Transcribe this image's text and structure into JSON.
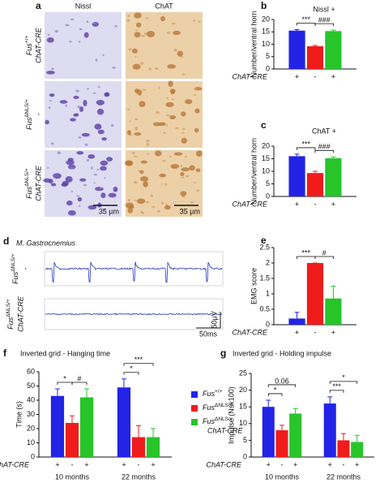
{
  "panel_a": {
    "letter": "a",
    "columns": [
      "Nissl",
      "ChAT"
    ],
    "rows": [
      {
        "gene": "Fus",
        "allele": "+/+",
        "cre": "ChAT-CRE"
      },
      {
        "gene": "Fus",
        "allele": "ΔNLS/+",
        "cre": "-"
      },
      {
        "gene": "Fus",
        "allele": "ΔNLS/+",
        "cre": "ChAT-CRE"
      }
    ],
    "scale_bars": [
      "35 µm",
      "35 µm"
    ]
  },
  "panel_d": {
    "letter": "d",
    "muscle": "M. Gastrocnemius",
    "rows": [
      {
        "gene": "Fus",
        "allele": "ΔNLS/+",
        "cre": "-"
      },
      {
        "gene": "Fus",
        "allele": "ΔNLS/+",
        "cre": "ChAT-CRE"
      }
    ],
    "scale_y": "50µV",
    "scale_x": "50ms"
  },
  "chart_data": [
    {
      "type": "bar",
      "letter": "b",
      "title": "Nissl +",
      "y_label": "Number/ventral horn",
      "x_label": "ChAT-CRE",
      "bar_labels": [
        "+",
        "-",
        "+"
      ],
      "series": [
        {
          "color": "#2323e6",
          "values": [
            15.5
          ],
          "errors": [
            0.4
          ]
        },
        {
          "color": "#f01c1c",
          "values": [
            9.2
          ],
          "errors": [
            0.3
          ]
        },
        {
          "color": "#27c42a",
          "values": [
            15.3
          ],
          "errors": [
            0.4
          ]
        }
      ],
      "ylim": [
        0,
        20
      ],
      "yticks": [
        0,
        5,
        10,
        15,
        20
      ],
      "annotations": [
        {
          "text": "***",
          "bars": [
            0,
            1
          ]
        },
        {
          "text": "###",
          "bars": [
            1,
            2
          ]
        }
      ]
    },
    {
      "type": "bar",
      "letter": "c",
      "title": "ChAT +",
      "y_label": "Number/ventral horn",
      "x_label": "ChAT-CRE",
      "bar_labels": [
        "+",
        "-",
        "+"
      ],
      "series": [
        {
          "color": "#2323e6",
          "values": [
            16
          ],
          "errors": [
            0.8
          ]
        },
        {
          "color": "#f01c1c",
          "values": [
            9.3
          ],
          "errors": [
            0.7
          ]
        },
        {
          "color": "#27c42a",
          "values": [
            15.2
          ],
          "errors": [
            0.5
          ]
        }
      ],
      "ylim": [
        0,
        20
      ],
      "yticks": [
        0,
        5,
        10,
        15,
        20
      ],
      "annotations": [
        {
          "text": "***",
          "bars": [
            0,
            1
          ]
        },
        {
          "text": "###",
          "bars": [
            1,
            2
          ]
        }
      ]
    },
    {
      "type": "bar",
      "letter": "e",
      "y_label": "EMG score",
      "x_label": "ChAT-CRE",
      "bar_labels": [
        "+",
        "-",
        "+"
      ],
      "series": [
        {
          "color": "#2323e6",
          "values": [
            0.2
          ],
          "errors": [
            0.2
          ]
        },
        {
          "color": "#f01c1c",
          "values": [
            2
          ],
          "errors": [
            0
          ]
        },
        {
          "color": "#27c42a",
          "values": [
            0.85
          ],
          "errors": [
            0.4
          ]
        }
      ],
      "ylim": [
        0,
        2.5
      ],
      "yticks": [
        0,
        0.5,
        1,
        1.5,
        2,
        2.5
      ],
      "annotations": [
        {
          "text": "***",
          "bars": [
            0,
            1
          ]
        },
        {
          "text": "#",
          "bars": [
            1,
            2
          ]
        }
      ]
    },
    {
      "type": "bar",
      "letter": "f",
      "title": "Inverted grid  - Hanging time",
      "y_label": "Time (s)",
      "x_label": "ChAT-CRE",
      "groups": [
        "10 months",
        "22 months"
      ],
      "bar_labels": [
        "+",
        "-",
        "+",
        "+",
        "-",
        "+"
      ],
      "series": [
        {
          "name": "Fus",
          "name_sup": "+/+",
          "color": "#2323e6",
          "values": [
            43,
            49
          ],
          "errors": [
            5,
            6
          ]
        },
        {
          "name": "Fus",
          "name_sup": "ΔNLS/+",
          "color": "#f01c1c",
          "values": [
            24,
            14
          ],
          "errors": [
            5,
            8
          ]
        },
        {
          "name": "Fus",
          "name_sup": "ΔNLS/+",
          "name_line2": "ChAT-CRE",
          "color": "#27c42a",
          "values": [
            42,
            14
          ],
          "errors": [
            6,
            6
          ]
        }
      ],
      "ylim": [
        0,
        60
      ],
      "yticks": [
        0,
        10,
        20,
        30,
        40,
        50,
        60
      ],
      "annotations": [
        {
          "text": "*",
          "bars": [
            0,
            1
          ]
        },
        {
          "text": "#",
          "bars": [
            1,
            2
          ]
        },
        {
          "text": "*",
          "bars": [
            3,
            4
          ]
        },
        {
          "text": "***",
          "bars": [
            3,
            5
          ]
        }
      ]
    },
    {
      "type": "bar",
      "letter": "g",
      "title": "Inverted grid  - Holding impulse",
      "y_label": "Impulse (Nsx100)",
      "x_label": "ChAT-CRE",
      "groups": [
        "10 months",
        "22 months"
      ],
      "bar_labels": [
        "+",
        "-",
        "+",
        "+",
        "-",
        "+"
      ],
      "series": [
        {
          "color": "#2323e6",
          "values": [
            15,
            16
          ],
          "errors": [
            2,
            2
          ]
        },
        {
          "color": "#f01c1c",
          "values": [
            8,
            5
          ],
          "errors": [
            1.5,
            2
          ]
        },
        {
          "color": "#27c42a",
          "values": [
            13,
            4.5
          ],
          "errors": [
            1.5,
            2
          ]
        }
      ],
      "ylim": [
        0,
        25
      ],
      "yticks": [
        0,
        5,
        10,
        15,
        20,
        25
      ],
      "annotations": [
        {
          "text": "*",
          "bars": [
            0,
            1
          ]
        },
        {
          "text": "0.06",
          "bars": [
            0,
            2
          ]
        },
        {
          "text": "***",
          "bars": [
            3,
            4
          ]
        },
        {
          "text": "*",
          "bars": [
            3,
            5
          ]
        }
      ]
    }
  ]
}
